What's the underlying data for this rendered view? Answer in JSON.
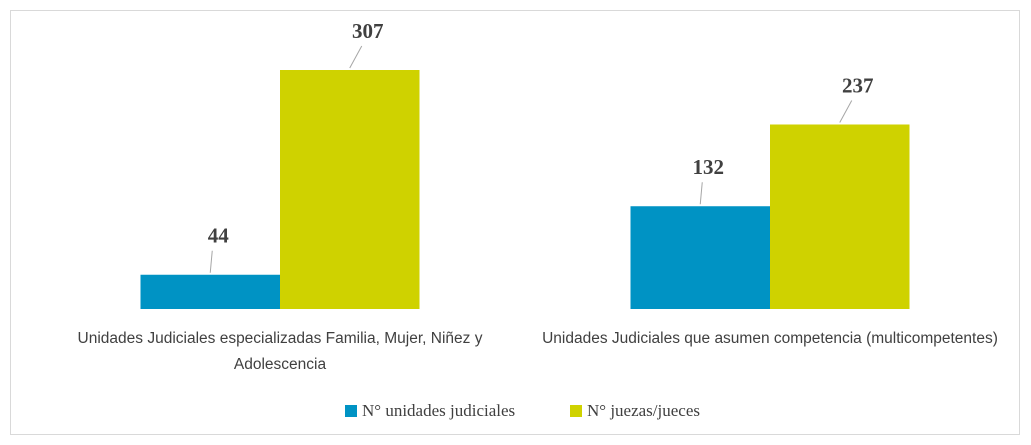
{
  "chart_data": {
    "type": "bar",
    "categories": [
      "Unidades Judiciales especializadas Familia, Mujer, Niñez y Adolescencia",
      "Unidades Judiciales que asumen competencia (multicompetentes)"
    ],
    "series": [
      {
        "name": "N° unidades judiciales",
        "color": "#0093c4",
        "values": [
          44,
          132
        ]
      },
      {
        "name": "N° juezas/jueces",
        "color": "#cfd200",
        "values": [
          307,
          237
        ]
      }
    ],
    "legend": "bottom"
  }
}
